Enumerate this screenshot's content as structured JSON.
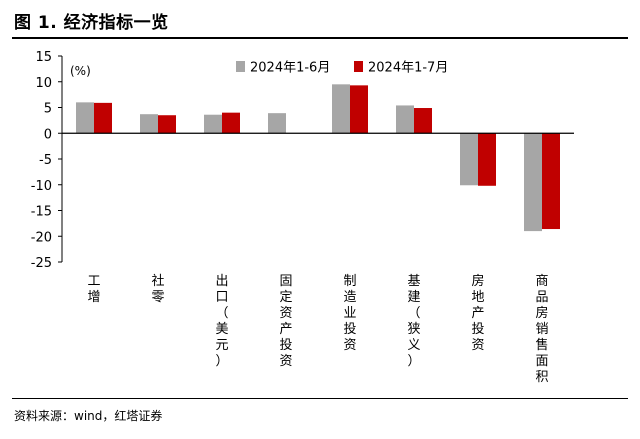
{
  "figure": {
    "title": "图 1. 经济指标一览",
    "source": "资料来源：wind，红塔证券"
  },
  "chart_data": {
    "type": "bar",
    "unit_label": "(%)",
    "categories": [
      "工增",
      "社零",
      "出口（美元）",
      "固定资产投资",
      "制造业投资",
      "基建（狭义）",
      "房地产投资",
      "商品房销售面积"
    ],
    "series": [
      {
        "name": "2024年1-6月",
        "color": "#a6a6a6",
        "values": [
          6.0,
          3.7,
          3.6,
          3.9,
          9.5,
          5.4,
          -10.1,
          -19.0
        ]
      },
      {
        "name": "2024年1-7月",
        "color": "#c00000",
        "values": [
          5.9,
          3.5,
          4.0,
          null,
          9.3,
          4.9,
          -10.2,
          -18.6
        ]
      }
    ],
    "ylim": [
      -25,
      15
    ],
    "yticks": [
      15,
      10,
      5,
      0,
      -5,
      -10,
      -15,
      -20,
      -25
    ],
    "legend_position": "top-center",
    "grid": false
  }
}
